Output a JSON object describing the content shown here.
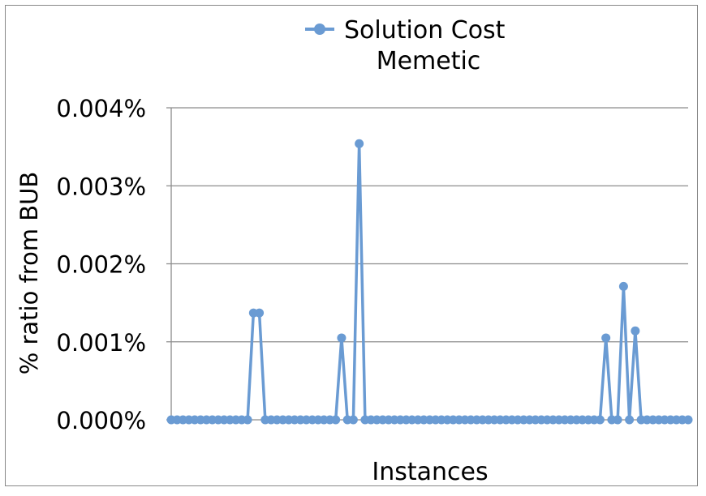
{
  "chart_data": {
    "type": "line",
    "title": "Memetic",
    "xlabel": "Instances",
    "ylabel": "% ratio from BUB",
    "ylim": [
      0,
      0.004
    ],
    "yticks": [
      {
        "value": 0.0,
        "label": "0.000%"
      },
      {
        "value": 0.001,
        "label": "0.001%"
      },
      {
        "value": 0.002,
        "label": "0.002%"
      },
      {
        "value": 0.003,
        "label": "0.003%"
      },
      {
        "value": 0.004,
        "label": "0.004%"
      }
    ],
    "grid": true,
    "legend_position": "top",
    "series": [
      {
        "name": "Solution Cost",
        "color": "#6a9bd3",
        "values": [
          0,
          0,
          0,
          0,
          0,
          0,
          0,
          0,
          0,
          0,
          0,
          0,
          0,
          0,
          0.00137,
          0.00137,
          0,
          0,
          0,
          0,
          0,
          0,
          0,
          0,
          0,
          0,
          0,
          0,
          0,
          0.00105,
          0,
          0,
          0.00354,
          0,
          0,
          0,
          0,
          0,
          0,
          0,
          0,
          0,
          0,
          0,
          0,
          0,
          0,
          0,
          0,
          0,
          0,
          0,
          0,
          0,
          0,
          0,
          0,
          0,
          0,
          0,
          0,
          0,
          0,
          0,
          0,
          0,
          0,
          0,
          0,
          0,
          0,
          0,
          0,
          0,
          0.00105,
          0,
          0,
          0.00171,
          0,
          0.00114,
          0,
          0,
          0,
          0,
          0,
          0,
          0,
          0,
          0
        ]
      }
    ]
  }
}
